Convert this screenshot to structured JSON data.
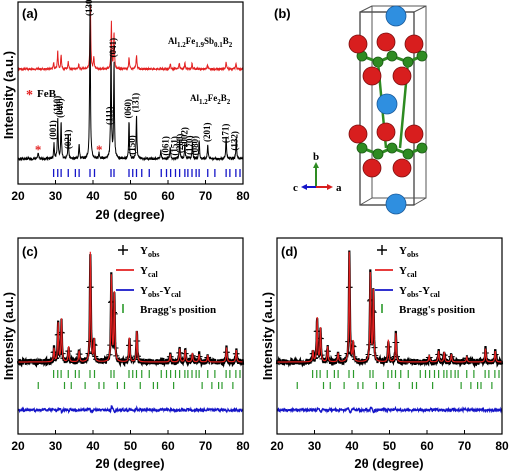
{
  "colors": {
    "red": "#e32020",
    "black": "#000000",
    "blue": "#1515c8",
    "green": "#2b9a2b",
    "atom_red": "#d81e1e",
    "atom_blue": "#2f8fe0",
    "atom_green": "#2e8b22"
  },
  "chart_data": [
    {
      "id": "a",
      "type": "line",
      "panel_label": "(a)",
      "xlabel": "2θ (degree)",
      "ylabel": "Intensity (a.u.)",
      "xlim": [
        20,
        80
      ],
      "xticks": [
        20,
        30,
        40,
        50,
        60,
        70,
        80
      ],
      "series": [
        {
          "name": "Al1.2Fe1.9Sb0.1B2",
          "label_main": "Al",
          "label_parts": [
            "Al",
            "1.2",
            "Fe",
            "1.9",
            "Sb",
            "0.1",
            "B",
            "2"
          ],
          "color": "#e32020",
          "baseline": 0.0,
          "peaks": [
            [
              29.5,
              0.1
            ],
            [
              30.6,
              0.28
            ],
            [
              31.5,
              0.22
            ],
            [
              33.4,
              0.12
            ],
            [
              36.2,
              0.08
            ],
            [
              39.3,
              1.0
            ],
            [
              40.2,
              0.18
            ],
            [
              44.9,
              0.72
            ],
            [
              45.6,
              0.55
            ],
            [
              49.6,
              0.18
            ],
            [
              51.6,
              0.22
            ],
            [
              60.6,
              0.08
            ],
            [
              63.0,
              0.1
            ],
            [
              64.5,
              0.09
            ],
            [
              66.4,
              0.08
            ],
            [
              70.5,
              0.07
            ],
            [
              75.5,
              0.1
            ],
            [
              78.1,
              0.09
            ]
          ]
        },
        {
          "name": "Al1.2Fe2B2",
          "label_parts": [
            "Al",
            "1.2",
            "Fe",
            "2",
            "B",
            "2"
          ],
          "color": "#000000",
          "peaks": [
            [
              25.4,
              0.04
            ],
            [
              29.6,
              0.1
            ],
            [
              30.6,
              0.26
            ],
            [
              31.5,
              0.24
            ],
            [
              33.4,
              0.16
            ],
            [
              36.3,
              0.1
            ],
            [
              39.2,
              1.0
            ],
            [
              41.6,
              0.04
            ],
            [
              44.8,
              0.72
            ],
            [
              45.6,
              0.62
            ],
            [
              49.6,
              0.24
            ],
            [
              51.6,
              0.28
            ],
            [
              58.1,
              0.06
            ],
            [
              60.6,
              0.08
            ],
            [
              63.1,
              0.12
            ],
            [
              64.5,
              0.1
            ],
            [
              66.5,
              0.1
            ],
            [
              68.3,
              0.12
            ],
            [
              70.6,
              0.09
            ],
            [
              75.5,
              0.14
            ],
            [
              78.2,
              0.13
            ]
          ]
        }
      ],
      "annotations": {
        "legend_feb": "FeB",
        "star_positions": [
          25.3,
          41.6
        ],
        "miller": [
          {
            "text": "(001)",
            "x": 29.6
          },
          {
            "text": "(110)",
            "x": 30.6
          },
          {
            "text": "(040)",
            "x": 31.5
          },
          {
            "text": "(021)",
            "x": 33.6
          },
          {
            "text": "(130)",
            "x": 39.2
          },
          {
            "text": "(111)",
            "x": 44.6
          },
          {
            "text": "(041)",
            "x": 45.6
          },
          {
            "text": "(060)",
            "x": 49.6
          },
          {
            "text": "(131)",
            "x": 51.6
          },
          {
            "text": "(150)",
            "x": 50.6
          },
          {
            "text": "(061)",
            "x": 59.6
          },
          {
            "text": "(151)",
            "x": 62.0
          },
          {
            "text": "(200)",
            "x": 63.4
          },
          {
            "text": "(002)",
            "x": 64.6
          },
          {
            "text": "(170)",
            "x": 66.0
          },
          {
            "text": "(080)",
            "x": 67.4
          },
          {
            "text": "(201)",
            "x": 70.6
          },
          {
            "text": "(171)",
            "x": 75.6
          },
          {
            "text": "(132)",
            "x": 78.0
          }
        ],
        "bragg_ticks": [
          29.5,
          30.6,
          31.5,
          33.4,
          35.3,
          36.3,
          39.2,
          40.4,
          44.8,
          45.6,
          49.6,
          50.6,
          51.6,
          53.0,
          55.0,
          58.2,
          59.6,
          60.7,
          62.0,
          63.1,
          64.5,
          65.3,
          66.4,
          67.5,
          68.3,
          70.6,
          72.5,
          75.5,
          76.5,
          78.1,
          79.2
        ]
      }
    },
    {
      "id": "c",
      "type": "line",
      "panel_label": "(c)",
      "xlabel": "2θ (degree)",
      "ylabel": "Intensity (a.u.)",
      "xlim": [
        20,
        80
      ],
      "xticks": [
        20,
        30,
        40,
        50,
        60,
        70,
        80
      ],
      "legend": [
        "Yobs",
        "Ycal",
        "Yobs-Ycal",
        "Bragg's position"
      ],
      "peaks": [
        [
          29.6,
          0.12
        ],
        [
          30.7,
          0.35
        ],
        [
          31.6,
          0.38
        ],
        [
          33.5,
          0.14
        ],
        [
          36.3,
          0.1
        ],
        [
          39.3,
          1.0
        ],
        [
          40.3,
          0.2
        ],
        [
          44.9,
          0.78
        ],
        [
          45.7,
          0.62
        ],
        [
          49.7,
          0.22
        ],
        [
          51.7,
          0.28
        ],
        [
          60.6,
          0.07
        ],
        [
          63.1,
          0.12
        ],
        [
          64.6,
          0.11
        ],
        [
          66.5,
          0.08
        ],
        [
          68.3,
          0.07
        ],
        [
          70.6,
          0.06
        ],
        [
          75.6,
          0.13
        ],
        [
          78.2,
          0.11
        ]
      ],
      "bragg_ticks_row1": [
        29.5,
        30.6,
        31.5,
        33.4,
        35.3,
        36.3,
        39.2,
        40.4,
        44.8,
        45.6,
        49.6,
        50.6,
        51.6,
        53.0,
        55.0,
        58.2,
        59.6,
        60.7,
        62.0,
        63.1,
        64.5,
        65.3,
        66.4,
        67.5,
        68.3,
        70.6,
        72.5,
        75.5,
        76.5,
        78.1,
        79.2
      ],
      "bragg_ticks_row2": [
        25.4,
        32.4,
        34.2,
        37.9,
        41.6,
        42.9,
        46.5,
        48.4,
        52.6,
        56.1,
        57.2,
        61.5,
        69.1,
        71.7,
        73.5,
        74.4,
        77.3
      ]
    },
    {
      "id": "d",
      "type": "line",
      "panel_label": "(d)",
      "xlabel": "2θ (degree)",
      "ylabel": "Intensity (a.u.)",
      "xlim": [
        20,
        80
      ],
      "xticks": [
        20,
        30,
        40,
        50,
        60,
        70,
        80
      ],
      "legend": [
        "Yobs",
        "Ycal",
        "Yobs-Ycal",
        "Bragg's position"
      ],
      "peaks": [
        [
          29.6,
          0.1
        ],
        [
          30.7,
          0.4
        ],
        [
          31.6,
          0.3
        ],
        [
          33.5,
          0.14
        ],
        [
          36.3,
          0.08
        ],
        [
          39.3,
          1.0
        ],
        [
          40.3,
          0.18
        ],
        [
          44.9,
          0.8
        ],
        [
          45.7,
          0.64
        ],
        [
          49.7,
          0.2
        ],
        [
          51.7,
          0.26
        ],
        [
          60.6,
          0.06
        ],
        [
          63.1,
          0.1
        ],
        [
          64.6,
          0.09
        ],
        [
          66.5,
          0.07
        ],
        [
          70.6,
          0.05
        ],
        [
          75.6,
          0.12
        ],
        [
          78.2,
          0.1
        ]
      ],
      "bragg_ticks_row1": [
        29.5,
        30.6,
        31.5,
        33.4,
        35.3,
        36.3,
        39.2,
        40.4,
        44.8,
        45.6,
        49.6,
        50.6,
        51.6,
        53.0,
        55.0,
        58.2,
        59.6,
        60.7,
        62.0,
        63.1,
        64.5,
        65.3,
        66.4,
        67.5,
        68.3,
        70.6,
        72.5,
        75.5,
        76.5,
        78.1,
        79.2
      ],
      "bragg_ticks_row2": [
        25.4,
        32.4,
        34.2,
        37.9,
        41.6,
        42.9,
        46.5,
        48.4,
        52.6,
        56.1,
        57.2,
        61.5,
        69.1,
        71.7,
        73.5,
        74.4,
        77.3
      ]
    }
  ],
  "structure": {
    "panel_label": "(b)",
    "axes": {
      "b": "b",
      "c": "c",
      "a": "a"
    }
  }
}
